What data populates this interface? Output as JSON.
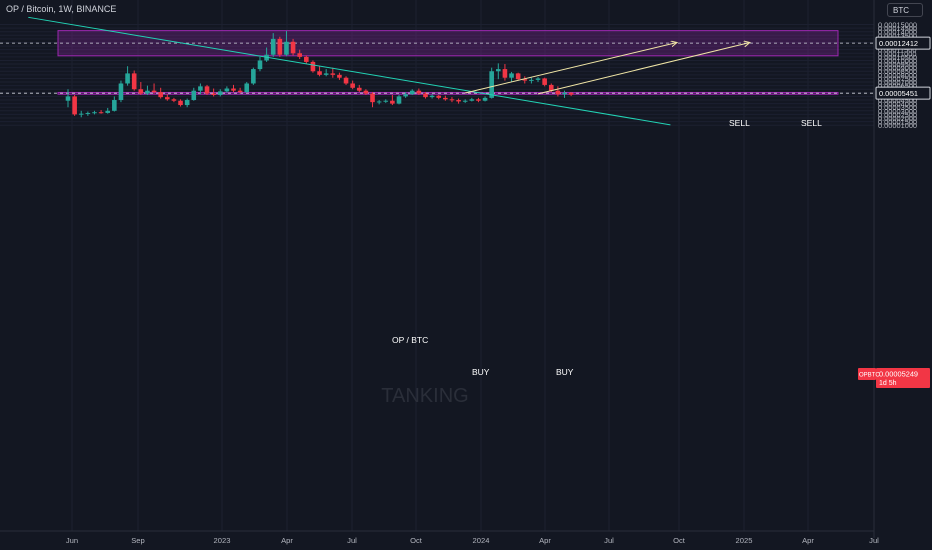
{
  "header": {
    "symbol_line": "OP / Bitcoin, 1W, BINANCE"
  },
  "currency": "BTC",
  "watermark": "TANKING",
  "colors": {
    "background": "#131722",
    "up": "#26a69a",
    "down": "#f23645",
    "zone": "#9c27b0",
    "trendline": "#22d3b5",
    "arrow": "#f1e6a6"
  },
  "price_scale": {
    "ticks": [
      "0.00015000",
      "0.00014500",
      "0.00014000",
      "0.00013500",
      "0.00013000",
      "0.00012500",
      "0.00012000",
      "0.00011500",
      "0.00011000",
      "0.00010500",
      "0.00010000",
      "0.00009500",
      "0.00009000",
      "0.00008500",
      "0.00008000",
      "0.00007500",
      "0.00007000",
      "0.00006500",
      "0.00006000",
      "0.00005500",
      "0.00005000",
      "0.00004500",
      "0.00004000",
      "0.00003500",
      "0.00003000",
      "0.00002500",
      "0.00002000",
      "0.00001500",
      "0.00001000"
    ],
    "line_label_1": "0.00012412",
    "line_label_2": "0.00005451",
    "current_symbol": "OPBTC",
    "current_price": "0.00005249",
    "countdown": "1d 5h"
  },
  "time_scale": [
    "Jun",
    "Sep",
    "2023",
    "Apr",
    "Jul",
    "Oct",
    "2024",
    "Apr",
    "Jul",
    "Oct",
    "2025",
    "Apr",
    "Jul"
  ],
  "chart_data": {
    "type": "candlestick",
    "title": "OP / Bitcoin, 1W, BINANCE",
    "annotations": [
      {
        "text": "OP / BTC"
      },
      {
        "text": "BUY"
      },
      {
        "text": "BUY"
      },
      {
        "text": "SELL"
      },
      {
        "text": "SELL"
      }
    ],
    "zones": [
      {
        "name": "upper-zone",
        "y_top": 0.0001415,
        "y_bottom": 0.0001065
      },
      {
        "name": "lower-zone",
        "y_top": 5.55e-05,
        "y_bottom": 5.3e-05
      }
    ],
    "horizontal_lines": [
      0.00012412,
      5.451e-05
    ],
    "trendline": {
      "from": {
        "week": -6,
        "y": 0.00016
      },
      "to": {
        "week": 91,
        "y": 1.05e-05
      }
    },
    "arrows": [
      {
        "from": {
          "week": 60,
          "y": 5.48e-05
        },
        "to": {
          "week": 92,
          "y": 0.000125
        }
      },
      {
        "from": {
          "week": 71,
          "y": 5.36e-05
        },
        "to": {
          "week": 103,
          "y": 0.000125
        }
      }
    ],
    "candles": [
      {
        "o": 4.4e-05,
        "h": 6e-05,
        "l": 3.5e-05,
        "c": 5e-05
      },
      {
        "o": 5e-05,
        "h": 5.2e-05,
        "l": 2.3e-05,
        "c": 2.5e-05
      },
      {
        "o": 2.5e-05,
        "h": 3e-05,
        "l": 2.1e-05,
        "c": 2.6e-05
      },
      {
        "o": 2.6e-05,
        "h": 2.9e-05,
        "l": 2.3e-05,
        "c": 2.7e-05
      },
      {
        "o": 2.7e-05,
        "h": 3e-05,
        "l": 2.5e-05,
        "c": 2.8e-05
      },
      {
        "o": 2.8e-05,
        "h": 3.1e-05,
        "l": 2.6e-05,
        "c": 2.7e-05
      },
      {
        "o": 2.7e-05,
        "h": 3.4e-05,
        "l": 2.6e-05,
        "c": 3e-05
      },
      {
        "o": 3e-05,
        "h": 5e-05,
        "l": 2.9e-05,
        "c": 4.5e-05
      },
      {
        "o": 4.5e-05,
        "h": 7.2e-05,
        "l": 4.2e-05,
        "c": 6.8e-05
      },
      {
        "o": 6.8e-05,
        "h": 9.2e-05,
        "l": 6.5e-05,
        "c": 8.2e-05
      },
      {
        "o": 8.2e-05,
        "h": 8.6e-05,
        "l": 5.8e-05,
        "c": 6e-05
      },
      {
        "o": 6e-05,
        "h": 7e-05,
        "l": 5.2e-05,
        "c": 5.4e-05
      },
      {
        "o": 5.4e-05,
        "h": 6.5e-05,
        "l": 5.2e-05,
        "c": 5.8e-05
      },
      {
        "o": 5.8e-05,
        "h": 6.8e-05,
        "l": 5.4e-05,
        "c": 5.6e-05
      },
      {
        "o": 5.6e-05,
        "h": 6.2e-05,
        "l": 4.7e-05,
        "c": 4.9e-05
      },
      {
        "o": 4.9e-05,
        "h": 5.3e-05,
        "l": 4.4e-05,
        "c": 4.6e-05
      },
      {
        "o": 4.6e-05,
        "h": 4.8e-05,
        "l": 4.2e-05,
        "c": 4.4e-05
      },
      {
        "o": 4.4e-05,
        "h": 4.6e-05,
        "l": 3.6e-05,
        "c": 3.8e-05
      },
      {
        "o": 3.8e-05,
        "h": 4.7e-05,
        "l": 3.5e-05,
        "c": 4.5e-05
      },
      {
        "o": 4.5e-05,
        "h": 6.2e-05,
        "l": 4.4e-05,
        "c": 5.8e-05
      },
      {
        "o": 5.8e-05,
        "h": 6.8e-05,
        "l": 5.3e-05,
        "c": 6.4e-05
      },
      {
        "o": 6.4e-05,
        "h": 6.6e-05,
        "l": 5.2e-05,
        "c": 5.4e-05
      },
      {
        "o": 5.4e-05,
        "h": 6.1e-05,
        "l": 5e-05,
        "c": 5.2e-05
      },
      {
        "o": 5.2e-05,
        "h": 6e-05,
        "l": 5e-05,
        "c": 5.7e-05
      },
      {
        "o": 5.7e-05,
        "h": 6.4e-05,
        "l": 5.5e-05,
        "c": 6.1e-05
      },
      {
        "o": 6.1e-05,
        "h": 6.6e-05,
        "l": 5.6e-05,
        "c": 5.8e-05
      },
      {
        "o": 5.8e-05,
        "h": 6.2e-05,
        "l": 5.4e-05,
        "c": 5.6e-05
      },
      {
        "o": 5.6e-05,
        "h": 7e-05,
        "l": 5.5e-05,
        "c": 6.8e-05
      },
      {
        "o": 6.8e-05,
        "h": 9e-05,
        "l": 6.6e-05,
        "c": 8.8e-05
      },
      {
        "o": 8.8e-05,
        "h": 0.000105,
        "l": 8.5e-05,
        "c": 0.0001
      },
      {
        "o": 0.0001,
        "h": 0.000118,
        "l": 9.8e-05,
        "c": 0.000108
      },
      {
        "o": 0.000108,
        "h": 0.000138,
        "l": 0.000105,
        "c": 0.00013
      },
      {
        "o": 0.00013,
        "h": 0.000133,
        "l": 0.000105,
        "c": 0.000108
      },
      {
        "o": 0.000108,
        "h": 0.000141,
        "l": 0.000106,
        "c": 0.000126
      },
      {
        "o": 0.000126,
        "h": 0.00013,
        "l": 0.000107,
        "c": 0.00011
      },
      {
        "o": 0.00011,
        "h": 0.000115,
        "l": 0.000102,
        "c": 0.000105
      },
      {
        "o": 0.000105,
        "h": 0.000107,
        "l": 9.5e-05,
        "c": 9.8e-05
      },
      {
        "o": 9.8e-05,
        "h": 0.0001,
        "l": 8.3e-05,
        "c": 8.5e-05
      },
      {
        "o": 8.5e-05,
        "h": 9.2e-05,
        "l": 7.8e-05,
        "c": 8e-05
      },
      {
        "o": 8e-05,
        "h": 8.8e-05,
        "l": 7.8e-05,
        "c": 8.2e-05
      },
      {
        "o": 8.2e-05,
        "h": 9e-05,
        "l": 7.6e-05,
        "c": 8e-05
      },
      {
        "o": 8e-05,
        "h": 8.3e-05,
        "l": 7.3e-05,
        "c": 7.6e-05
      },
      {
        "o": 7.6e-05,
        "h": 7.8e-05,
        "l": 6.6e-05,
        "c": 6.8e-05
      },
      {
        "o": 6.8e-05,
        "h": 7.2e-05,
        "l": 6e-05,
        "c": 6.2e-05
      },
      {
        "o": 6.2e-05,
        "h": 6.6e-05,
        "l": 5.6e-05,
        "c": 5.8e-05
      },
      {
        "o": 5.8e-05,
        "h": 6e-05,
        "l": 5.2e-05,
        "c": 5.4e-05
      },
      {
        "o": 5.4e-05,
        "h": 5.6e-05,
        "l": 3.5e-05,
        "c": 4.2e-05
      },
      {
        "o": 4.2e-05,
        "h": 4.5e-05,
        "l": 3.9e-05,
        "c": 4.3e-05
      },
      {
        "o": 4.3e-05,
        "h": 4.6e-05,
        "l": 4.1e-05,
        "c": 4.4e-05
      },
      {
        "o": 4.4e-05,
        "h": 5.2e-05,
        "l": 3.8e-05,
        "c": 4e-05
      },
      {
        "o": 4e-05,
        "h": 5.2e-05,
        "l": 3.9e-05,
        "c": 5e-05
      },
      {
        "o": 5e-05,
        "h": 5.6e-05,
        "l": 4.8e-05,
        "c": 5.3e-05
      },
      {
        "o": 5.3e-05,
        "h": 6e-05,
        "l": 5.2e-05,
        "c": 5.8e-05
      },
      {
        "o": 5.8e-05,
        "h": 6.1e-05,
        "l": 5.2e-05,
        "c": 5.4e-05
      },
      {
        "o": 5.4e-05,
        "h": 5.6e-05,
        "l": 4.7e-05,
        "c": 4.9e-05
      },
      {
        "o": 4.9e-05,
        "h": 5.3e-05,
        "l": 4.7e-05,
        "c": 5.1e-05
      },
      {
        "o": 5.1e-05,
        "h": 5.2e-05,
        "l": 4.6e-05,
        "c": 4.8e-05
      },
      {
        "o": 4.8e-05,
        "h": 5.1e-05,
        "l": 4.4e-05,
        "c": 4.6e-05
      },
      {
        "o": 4.6e-05,
        "h": 4.9e-05,
        "l": 4.2e-05,
        "c": 4.5e-05
      },
      {
        "o": 4.5e-05,
        "h": 4.7e-05,
        "l": 4e-05,
        "c": 4.3e-05
      },
      {
        "o": 4.3e-05,
        "h": 4.6e-05,
        "l": 4.1e-05,
        "c": 4.4e-05
      },
      {
        "o": 4.4e-05,
        "h": 4.8e-05,
        "l": 4.3e-05,
        "c": 4.6e-05
      },
      {
        "o": 4.6e-05,
        "h": 4.8e-05,
        "l": 4.2e-05,
        "c": 4.4e-05
      },
      {
        "o": 4.4e-05,
        "h": 5e-05,
        "l": 4.3e-05,
        "c": 4.8e-05
      },
      {
        "o": 4.8e-05,
        "h": 9e-05,
        "l": 4.7e-05,
        "c": 8.5e-05
      },
      {
        "o": 8.5e-05,
        "h": 9.6e-05,
        "l": 7.4e-05,
        "c": 8.8e-05
      },
      {
        "o": 8.8e-05,
        "h": 9.5e-05,
        "l": 7.2e-05,
        "c": 7.6e-05
      },
      {
        "o": 7.6e-05,
        "h": 8.4e-05,
        "l": 7e-05,
        "c": 8.2e-05
      },
      {
        "o": 8.2e-05,
        "h": 8.3e-05,
        "l": 7.2e-05,
        "c": 7.4e-05
      },
      {
        "o": 7.4e-05,
        "h": 7.8e-05,
        "l": 6.8e-05,
        "c": 7.2e-05
      },
      {
        "o": 7.2e-05,
        "h": 7.6e-05,
        "l": 6.8e-05,
        "c": 7.3e-05
      },
      {
        "o": 7.3e-05,
        "h": 7.7e-05,
        "l": 7e-05,
        "c": 7.5e-05
      },
      {
        "o": 7.5e-05,
        "h": 7.6e-05,
        "l": 6.4e-05,
        "c": 6.6e-05
      },
      {
        "o": 6.6e-05,
        "h": 6.8e-05,
        "l": 5.6e-05,
        "c": 5.8e-05
      },
      {
        "o": 5.8e-05,
        "h": 6.4e-05,
        "l": 5e-05,
        "c": 5.3e-05
      },
      {
        "o": 5.3e-05,
        "h": 5.8e-05,
        "l": 4.8e-05,
        "c": 5.5e-05
      },
      {
        "o": 5.5e-05,
        "h": 5.6e-05,
        "l": 5.05e-05,
        "c": 5.25e-05
      }
    ]
  }
}
